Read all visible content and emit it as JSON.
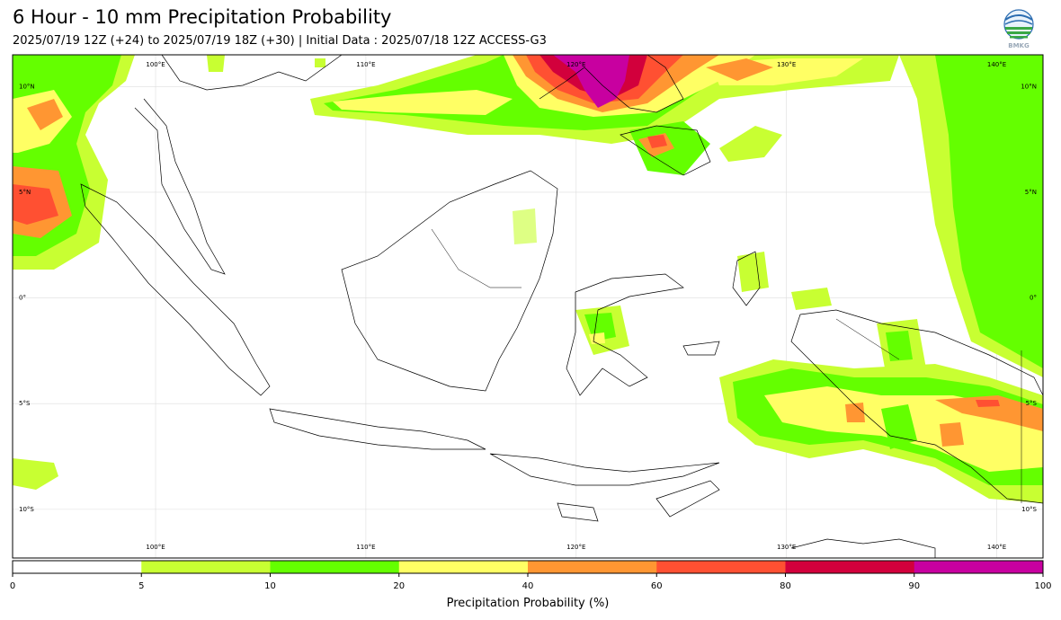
{
  "header": {
    "title": "6 Hour - 10 mm Precipitation Probability",
    "subtitle": "2025/07/19 12Z (+24) to 2025/07/19 18Z (+30) | Initial Data : 2025/07/18 12Z ACCESS-G3",
    "logo_text": "BMKG"
  },
  "map": {
    "lon_labels": [
      {
        "text": "100°E",
        "lon": 100
      },
      {
        "text": "110°E",
        "lon": 110
      },
      {
        "text": "120°E",
        "lon": 120
      },
      {
        "text": "130°E",
        "lon": 130
      },
      {
        "text": "140°E",
        "lon": 140
      }
    ],
    "lat_labels": [
      {
        "text": "10°N",
        "lat": 10
      },
      {
        "text": "5°N",
        "lat": 5
      },
      {
        "text": "0°",
        "lat": 0
      },
      {
        "text": "5°S",
        "lat": -5
      },
      {
        "text": "10°S",
        "lat": -10
      }
    ]
  },
  "colorbar": {
    "title": "Precipitation Probability (%)",
    "ticks": [
      "0",
      "5",
      "10",
      "20",
      "40",
      "60",
      "80",
      "90",
      "100"
    ],
    "colors": [
      "#ffffff",
      "#c8ff32",
      "#64ff00",
      "#ffff64",
      "#ff9632",
      "#ff5032",
      "#d2003c",
      "#c800a0"
    ]
  }
}
